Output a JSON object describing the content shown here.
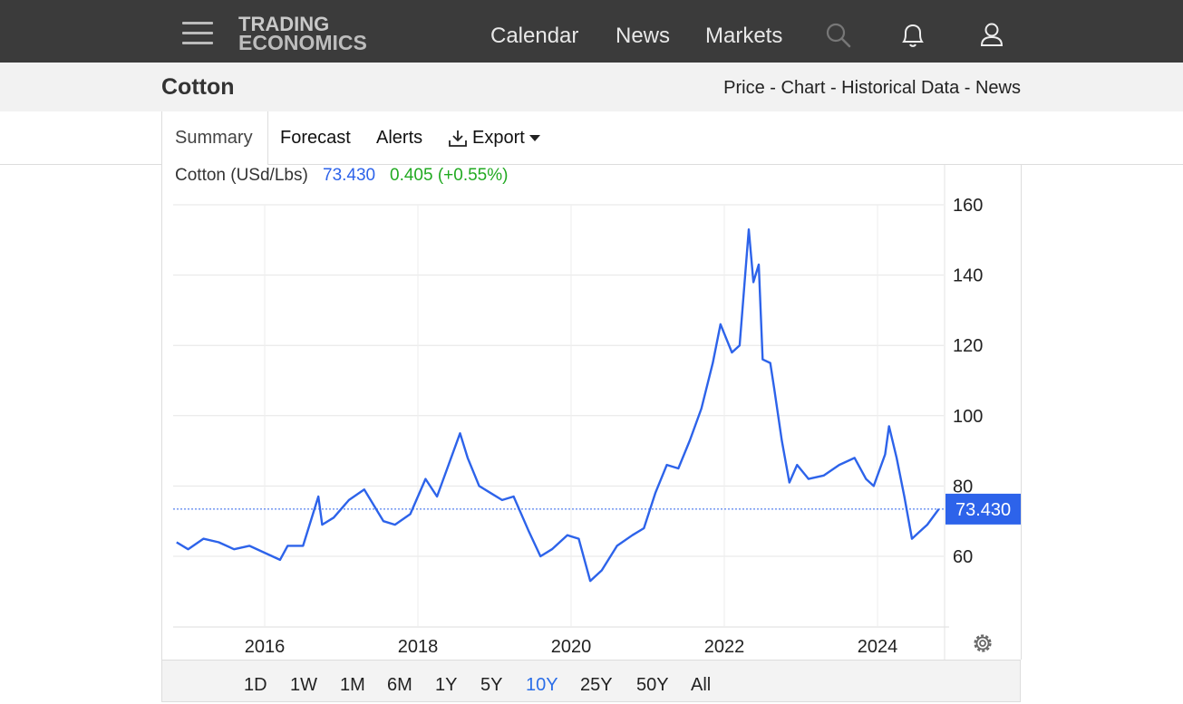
{
  "header": {
    "logo_line1": "TRADING",
    "logo_line2": "ECONOMICS",
    "nav": [
      "Calendar",
      "News",
      "Markets"
    ]
  },
  "page": {
    "title": "Cotton",
    "breadcrumb": "Price - Chart - Historical Data - News"
  },
  "tabs": {
    "summary": "Summary",
    "forecast": "Forecast",
    "alerts": "Alerts",
    "export": "Export"
  },
  "quote": {
    "name": "Cotton (USd/Lbs)",
    "price": "73.430",
    "change": "0.405 (+0.55%)",
    "last_label": "73.430"
  },
  "ranges": [
    "1D",
    "1W",
    "1M",
    "6M",
    "1Y",
    "5Y",
    "10Y",
    "25Y",
    "50Y",
    "All"
  ],
  "active_range": "10Y",
  "colors": {
    "line": "#2d63ea",
    "up": "#22aa22",
    "accent": "#2b6ee8"
  },
  "chart_data": {
    "type": "line",
    "series": [
      {
        "name": "Cotton (USd/Lbs)",
        "x": [
          2014.85,
          2015.0,
          2015.2,
          2015.4,
          2015.6,
          2015.8,
          2016.0,
          2016.2,
          2016.3,
          2016.5,
          2016.7,
          2016.75,
          2016.9,
          2017.1,
          2017.3,
          2017.55,
          2017.7,
          2017.9,
          2018.1,
          2018.25,
          2018.4,
          2018.55,
          2018.65,
          2018.8,
          2018.95,
          2019.1,
          2019.25,
          2019.45,
          2019.6,
          2019.75,
          2019.95,
          2020.1,
          2020.25,
          2020.4,
          2020.6,
          2020.8,
          2020.95,
          2021.1,
          2021.25,
          2021.4,
          2021.55,
          2021.7,
          2021.85,
          2021.95,
          2022.1,
          2022.2,
          2022.32,
          2022.38,
          2022.45,
          2022.5,
          2022.6,
          2022.65,
          2022.75,
          2022.85,
          2022.95,
          2023.1,
          2023.3,
          2023.5,
          2023.7,
          2023.85,
          2023.95,
          2024.1,
          2024.15,
          2024.25,
          2024.35,
          2024.45,
          2024.55,
          2024.65,
          2024.8
        ],
        "y": [
          64,
          62,
          65,
          64,
          62,
          63,
          61,
          59,
          63,
          63,
          77,
          69,
          71,
          76,
          79,
          70,
          69,
          72,
          82,
          77,
          86,
          95,
          88,
          80,
          78,
          76,
          77,
          67,
          60,
          62,
          66,
          65,
          53,
          56,
          63,
          66,
          68,
          78,
          86,
          85,
          93,
          102,
          115,
          126,
          118,
          120,
          153,
          138,
          143,
          116,
          115,
          108,
          93,
          81,
          86,
          82,
          83,
          86,
          88,
          82,
          80,
          89,
          97,
          88,
          77,
          65,
          67,
          69,
          73.43
        ]
      }
    ],
    "yticks": [
      60,
      80,
      100,
      120,
      140,
      160
    ],
    "xticks": [
      "2016",
      "2018",
      "2020",
      "2022",
      "2024"
    ],
    "xtick_values": [
      2016,
      2018,
      2020,
      2022,
      2024
    ],
    "ylim": [
      40,
      160
    ],
    "xlim": [
      2014.85,
      2024.9
    ],
    "last_value": 73.43,
    "grid": true
  }
}
